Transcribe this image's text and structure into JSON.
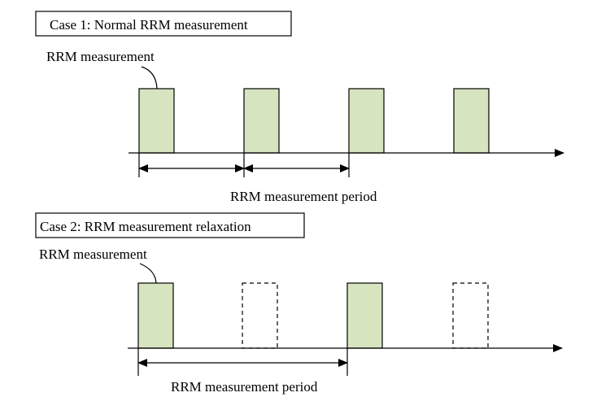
{
  "colors": {
    "block_fill": "#d6e4bf",
    "stroke": "#000000",
    "background": "#ffffff"
  },
  "case1": {
    "title": "Case 1: Normal RRM measurement",
    "callout": "RRM measurement",
    "period_label": "RRM measurement period",
    "blocks": [
      "solid",
      "solid",
      "solid",
      "solid"
    ]
  },
  "case2": {
    "title": "Case 2: RRM  measurement relaxation",
    "callout": "RRM measurement",
    "period_label": "RRM measurement period",
    "blocks": [
      "solid",
      "dashed",
      "solid",
      "dashed"
    ]
  }
}
